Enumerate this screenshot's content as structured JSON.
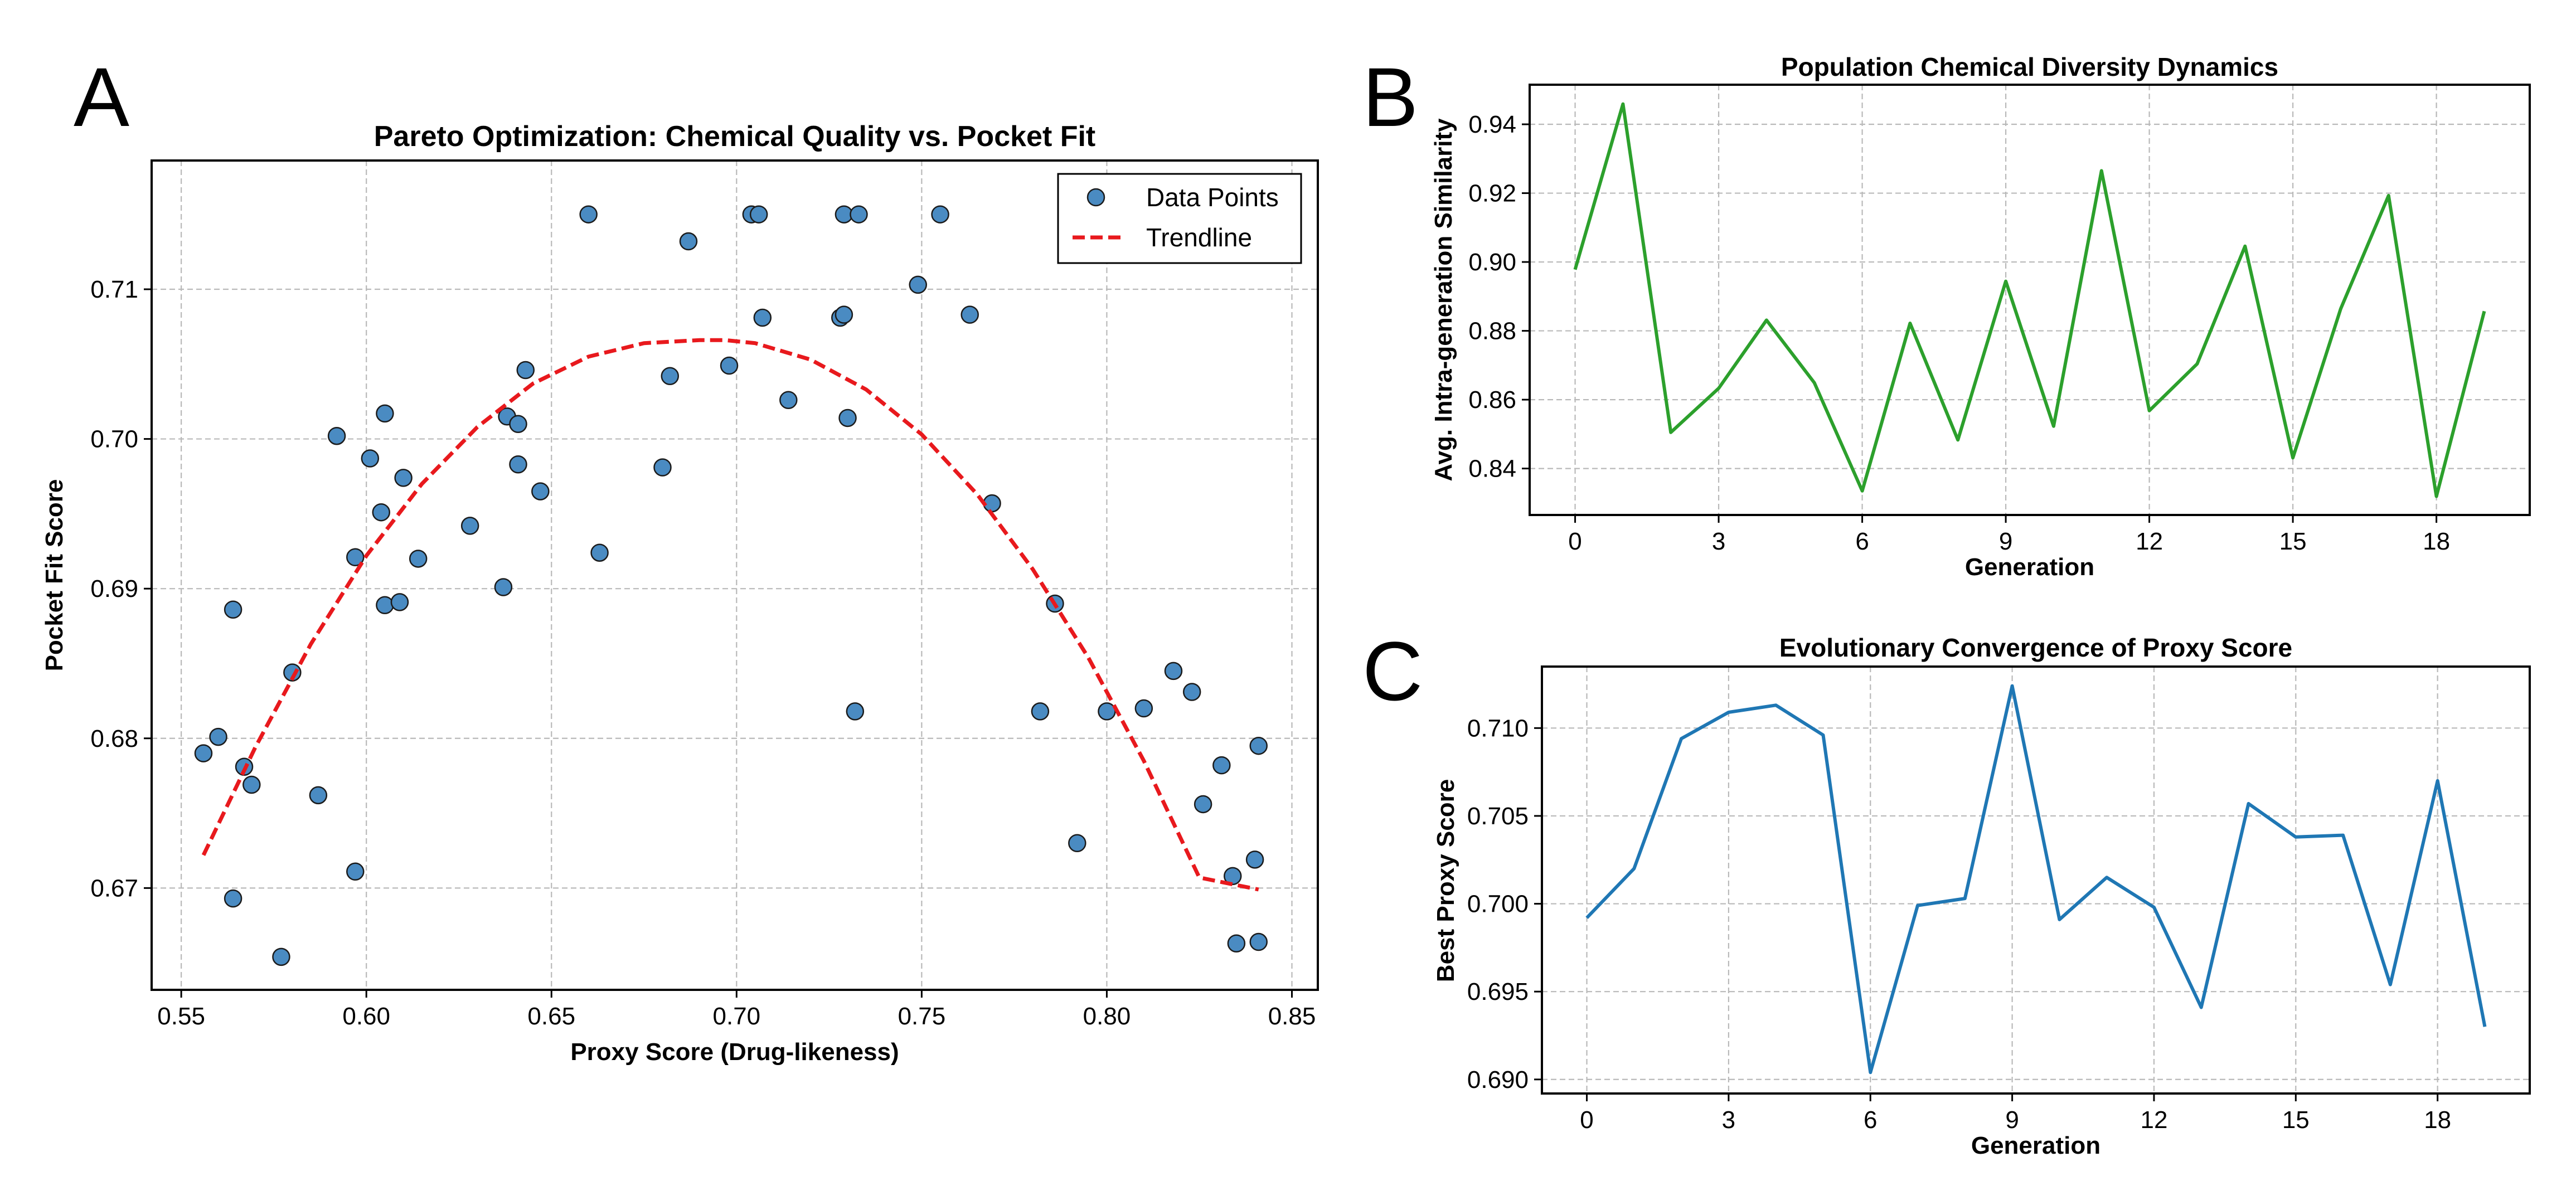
{
  "panels": {
    "a": "A",
    "b": "B",
    "c": "C"
  },
  "chart_data": [
    {
      "type": "scatter",
      "title": "Pareto Optimization: Chemical Quality vs. Pocket Fit",
      "xlabel": "Proxy Score (Drug-likeness)",
      "ylabel": "Pocket Fit Score",
      "xlim": [
        0.542,
        0.857
      ],
      "ylim": [
        0.6632,
        0.7186
      ],
      "xticks": [
        0.55,
        0.6,
        0.65,
        0.7,
        0.75,
        0.8,
        0.85
      ],
      "xtick_labels": [
        "0.55",
        "0.60",
        "0.65",
        "0.70",
        "0.75",
        "0.80",
        "0.85"
      ],
      "yticks": [
        0.67,
        0.68,
        0.69,
        0.7,
        0.71
      ],
      "ytick_labels": [
        "0.67",
        "0.68",
        "0.69",
        "0.70",
        "0.71"
      ],
      "grid": true,
      "legend": {
        "position": "top-right",
        "entries": [
          "Data Points",
          "Trendline"
        ]
      },
      "series": [
        {
          "name": "Data Points",
          "kind": "scatter",
          "color": "#4a8bc2",
          "points": [
            [
              0.556,
              0.679
            ],
            [
              0.56,
              0.6801
            ],
            [
              0.564,
              0.6886
            ],
            [
              0.567,
              0.6781
            ],
            [
              0.569,
              0.6769
            ],
            [
              0.564,
              0.6693
            ],
            [
              0.577,
              0.6654
            ],
            [
              0.58,
              0.6844
            ],
            [
              0.587,
              0.6762
            ],
            [
              0.592,
              0.7002
            ],
            [
              0.597,
              0.6711
            ],
            [
              0.597,
              0.6921
            ],
            [
              0.601,
              0.6987
            ],
            [
              0.604,
              0.6951
            ],
            [
              0.605,
              0.6889
            ],
            [
              0.605,
              0.7017
            ],
            [
              0.609,
              0.6891
            ],
            [
              0.61,
              0.6974
            ],
            [
              0.614,
              0.692
            ],
            [
              0.628,
              0.6942
            ],
            [
              0.637,
              0.6901
            ],
            [
              0.638,
              0.7015
            ],
            [
              0.641,
              0.6983
            ],
            [
              0.641,
              0.701
            ],
            [
              0.643,
              0.7046
            ],
            [
              0.647,
              0.6965
            ],
            [
              0.66,
              0.715
            ],
            [
              0.663,
              0.6924
            ],
            [
              0.68,
              0.6981
            ],
            [
              0.682,
              0.7042
            ],
            [
              0.687,
              0.7132
            ],
            [
              0.698,
              0.7049
            ],
            [
              0.704,
              0.715
            ],
            [
              0.706,
              0.715
            ],
            [
              0.707,
              0.7081
            ],
            [
              0.714,
              0.7026
            ],
            [
              0.728,
              0.7081
            ],
            [
              0.729,
              0.7083
            ],
            [
              0.729,
              0.715
            ],
            [
              0.73,
              0.7014
            ],
            [
              0.732,
              0.6818
            ],
            [
              0.733,
              0.715
            ],
            [
              0.749,
              0.7103
            ],
            [
              0.755,
              0.715
            ],
            [
              0.763,
              0.7083
            ],
            [
              0.769,
              0.6957
            ],
            [
              0.782,
              0.6818
            ],
            [
              0.786,
              0.689
            ],
            [
              0.792,
              0.673
            ],
            [
              0.8,
              0.6818
            ],
            [
              0.81,
              0.682
            ],
            [
              0.818,
              0.6845
            ],
            [
              0.823,
              0.6831
            ],
            [
              0.826,
              0.6756
            ],
            [
              0.831,
              0.6782
            ],
            [
              0.834,
              0.6708
            ],
            [
              0.835,
              0.6663
            ],
            [
              0.84,
              0.6719
            ],
            [
              0.841,
              0.6795
            ],
            [
              0.841,
              0.6664
            ]
          ]
        },
        {
          "name": "Trendline",
          "kind": "line",
          "color": "#e8191d",
          "x": [
            0.556,
            0.57,
            0.585,
            0.6,
            0.615,
            0.63,
            0.645,
            0.66,
            0.675,
            0.69,
            0.697,
            0.705,
            0.72,
            0.735,
            0.75,
            0.765,
            0.78,
            0.795,
            0.81,
            0.825,
            0.841
          ],
          "y": [
            0.6722,
            0.6794,
            0.6863,
            0.6922,
            0.697,
            0.7008,
            0.7037,
            0.7055,
            0.7064,
            0.7066,
            0.7066,
            0.7064,
            0.7053,
            0.7033,
            0.7003,
            0.6963,
            0.6913,
            0.6854,
            0.6785,
            0.6707,
            0.6699
          ]
        }
      ]
    },
    {
      "type": "line",
      "title": "Population Chemical Diversity Dynamics",
      "xlabel": "Generation",
      "ylabel": "Avg. Intra-generation Similarity",
      "xlim": [
        -0.95,
        19.95
      ],
      "ylim": [
        0.8265,
        0.9515
      ],
      "xticks": [
        0,
        3,
        6,
        9,
        12,
        15,
        18
      ],
      "xtick_labels": [
        "0",
        "3",
        "6",
        "9",
        "12",
        "15",
        "18"
      ],
      "yticks": [
        0.84,
        0.86,
        0.88,
        0.9,
        0.92,
        0.94
      ],
      "ytick_labels": [
        "0.84",
        "0.86",
        "0.88",
        "0.90",
        "0.92",
        "0.94"
      ],
      "grid": true,
      "series": [
        {
          "name": "Avg. Intra-generation Similarity",
          "color": "#2ca02c",
          "x": [
            0,
            1,
            2,
            3,
            4,
            5,
            6,
            7,
            8,
            9,
            10,
            11,
            12,
            13,
            14,
            15,
            16,
            17,
            18,
            19
          ],
          "values": [
            0.8978,
            0.9459,
            0.8505,
            0.8633,
            0.8831,
            0.8649,
            0.8335,
            0.8822,
            0.8483,
            0.8944,
            0.8523,
            0.9265,
            0.8568,
            0.8704,
            0.9046,
            0.8431,
            0.8864,
            0.9193,
            0.8319,
            0.8857
          ]
        }
      ]
    },
    {
      "type": "line",
      "title": "Evolutionary Convergence of Proxy Score",
      "xlabel": "Generation",
      "ylabel": "Best Proxy Score",
      "xlim": [
        -0.95,
        19.95
      ],
      "ylim": [
        0.6892,
        0.7135
      ],
      "xticks": [
        0,
        3,
        6,
        9,
        12,
        15,
        18
      ],
      "xtick_labels": [
        "0",
        "3",
        "6",
        "9",
        "12",
        "15",
        "18"
      ],
      "yticks": [
        0.69,
        0.695,
        0.7,
        0.705,
        0.71
      ],
      "ytick_labels": [
        "0.690",
        "0.695",
        "0.700",
        "0.705",
        "0.710"
      ],
      "grid": true,
      "series": [
        {
          "name": "Best Proxy Score",
          "color": "#1f77b4",
          "x": [
            0,
            1,
            2,
            3,
            4,
            5,
            6,
            7,
            8,
            9,
            10,
            11,
            12,
            13,
            14,
            15,
            16,
            17,
            18,
            19
          ],
          "values": [
            0.6992,
            0.702,
            0.7094,
            0.7109,
            0.7113,
            0.7096,
            0.6904,
            0.6999,
            0.7003,
            0.7124,
            0.6991,
            0.7015,
            0.6998,
            0.6941,
            0.7057,
            0.7038,
            0.7039,
            0.6954,
            0.707,
            0.693
          ]
        }
      ]
    }
  ]
}
